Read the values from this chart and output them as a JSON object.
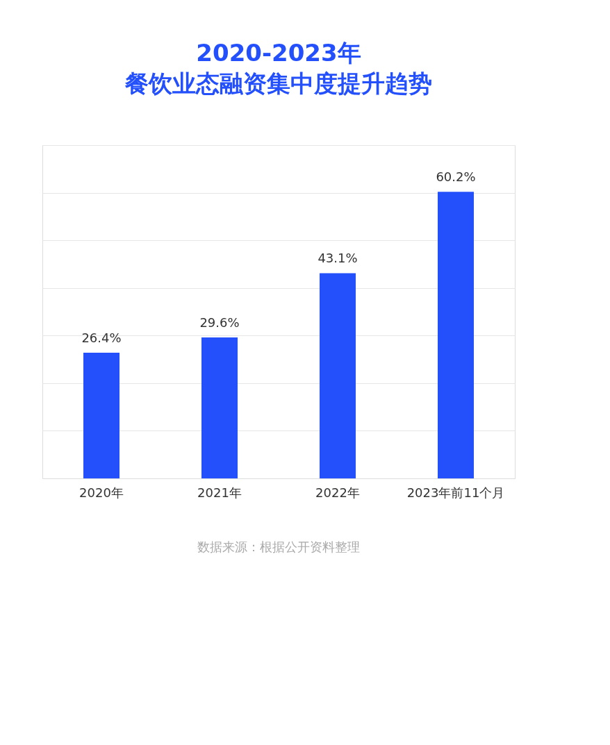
{
  "chart_data": {
    "type": "bar",
    "title": "2020-2023年",
    "subtitle": "餐饮业态融资集中度提升趋势",
    "categories": [
      "2020年",
      "2021年",
      "2022年",
      "2023年前11个月"
    ],
    "values": [
      26.4,
      29.6,
      43.1,
      60.2
    ],
    "color": "#2350fb",
    "value_labels": [
      "26.4%",
      "29.6%",
      "43.1%",
      "60.2%"
    ],
    "ylim": [
      0,
      70
    ],
    "yticks": [
      {
        "value": 0,
        "label": null
      },
      {
        "value": 10,
        "label": null
      },
      {
        "value": 20,
        "label": null
      },
      {
        "value": 30,
        "label": null
      },
      {
        "value": 40,
        "label": null
      },
      {
        "value": 50,
        "label": null
      },
      {
        "value": 60,
        "label": null
      },
      {
        "value": 70,
        "label": null
      }
    ],
    "grid": "y",
    "tick_labels": "x",
    "annotations": [
      "数据来源：根据公开资料整理"
    ]
  }
}
